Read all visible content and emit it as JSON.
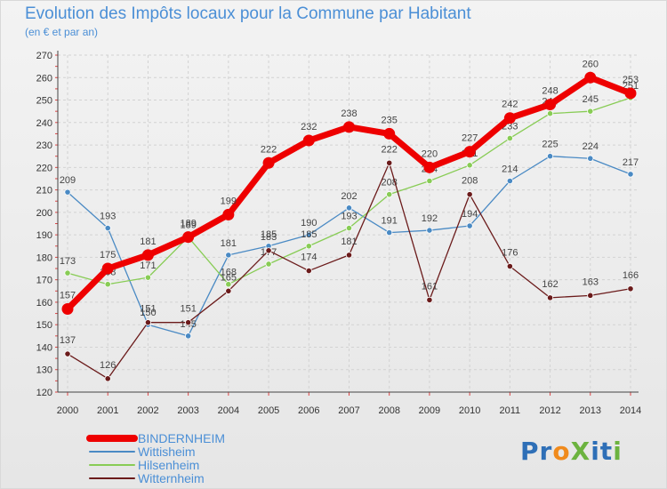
{
  "header": {
    "title": "Evolution des Impôts locaux pour la Commune par Habitant",
    "subtitle": "(en € et par an)"
  },
  "logo": {
    "text": "ProXiti",
    "letters": [
      {
        "ch": "P",
        "color": "#2e6fb7"
      },
      {
        "ch": "r",
        "color": "#2e6fb7"
      },
      {
        "ch": "o",
        "color": "#f08a1c"
      },
      {
        "ch": "X",
        "color": "#6cb33f"
      },
      {
        "ch": "i",
        "color": "#2e6fb7"
      },
      {
        "ch": "t",
        "color": "#2e6fb7"
      },
      {
        "ch": "i",
        "color": "#6cb33f"
      }
    ]
  },
  "chart_data": {
    "type": "line",
    "x": [
      "2000",
      "2001",
      "2002",
      "2003",
      "2004",
      "2005",
      "2006",
      "2007",
      "2008",
      "2009",
      "2010",
      "2011",
      "2012",
      "2013",
      "2014"
    ],
    "ylim": [
      120,
      270
    ],
    "yticks": [
      120,
      130,
      140,
      150,
      160,
      170,
      180,
      190,
      200,
      210,
      220,
      230,
      240,
      250,
      260,
      270
    ],
    "grid": true,
    "legend_position": "bottom-left",
    "series": [
      {
        "name": "BINDERNHEIM",
        "color": "#ee0000",
        "values": [
          157,
          175,
          181,
          189,
          199,
          222,
          232,
          238,
          235,
          220,
          227,
          242,
          248,
          260,
          253
        ]
      },
      {
        "name": "Wittisheim",
        "color": "#4a8ac4",
        "values": [
          209,
          193,
          150,
          145,
          181,
          185,
          190,
          202,
          191,
          192,
          194,
          214,
          225,
          224,
          217
        ]
      },
      {
        "name": "Hilsenheim",
        "color": "#88cc55",
        "values": [
          173,
          168,
          171,
          189,
          168,
          177,
          185,
          193,
          208,
          214,
          221,
          233,
          244,
          245,
          251
        ]
      },
      {
        "name": "Witternheim",
        "color": "#6b1b1b",
        "values": [
          137,
          126,
          151,
          151,
          165,
          183,
          174,
          181,
          222,
          161,
          208,
          176,
          162,
          163,
          166
        ]
      }
    ]
  }
}
